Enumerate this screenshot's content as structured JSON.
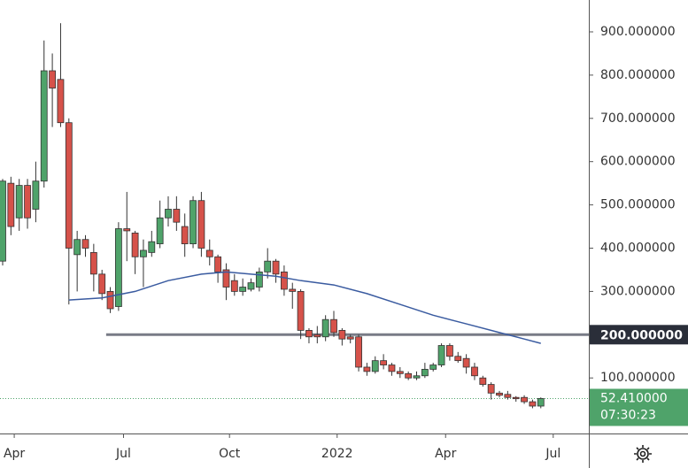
{
  "chart_data": {
    "type": "candlestick",
    "x": [
      0,
      1,
      2,
      3,
      4,
      5,
      6,
      7,
      8,
      9,
      10,
      11,
      12,
      13,
      14,
      15,
      16,
      17,
      18,
      19,
      20,
      21,
      22,
      23,
      24,
      25,
      26,
      27,
      28,
      29,
      30,
      31,
      32,
      33,
      34,
      35,
      36,
      37,
      38,
      39,
      40,
      41,
      42,
      43,
      44,
      45,
      46,
      47,
      48,
      49,
      50,
      51,
      52,
      53,
      54,
      55,
      56,
      57,
      58,
      59,
      60,
      61,
      62,
      63,
      64,
      65
    ],
    "open": [
      370,
      550,
      470,
      545,
      490,
      555,
      810,
      790,
      690,
      385,
      420,
      390,
      340,
      300,
      265,
      445,
      435,
      380,
      390,
      410,
      470,
      490,
      450,
      410,
      510,
      395,
      380,
      350,
      325,
      300,
      305,
      310,
      345,
      370,
      345,
      305,
      300,
      210,
      200,
      195,
      235,
      210,
      195,
      195,
      125,
      115,
      140,
      130,
      115,
      110,
      100,
      105,
      120,
      130,
      175,
      150,
      145,
      125,
      100,
      85,
      65,
      62,
      55,
      55,
      45,
      35
    ],
    "high": [
      560,
      565,
      560,
      560,
      600,
      880,
      850,
      920,
      700,
      440,
      430,
      410,
      350,
      310,
      460,
      530,
      440,
      420,
      440,
      510,
      520,
      520,
      480,
      520,
      530,
      420,
      385,
      365,
      340,
      330,
      330,
      355,
      400,
      375,
      360,
      320,
      305,
      215,
      220,
      245,
      255,
      215,
      200,
      200,
      135,
      150,
      155,
      135,
      125,
      115,
      115,
      135,
      135,
      180,
      180,
      160,
      155,
      135,
      105,
      90,
      70,
      70,
      58,
      60,
      50,
      55
    ],
    "low": [
      360,
      430,
      440,
      445,
      460,
      540,
      680,
      680,
      270,
      300,
      380,
      300,
      280,
      250,
      255,
      370,
      340,
      310,
      380,
      400,
      450,
      440,
      380,
      400,
      380,
      360,
      320,
      280,
      290,
      290,
      300,
      300,
      330,
      320,
      290,
      260,
      190,
      180,
      180,
      185,
      195,
      175,
      180,
      115,
      105,
      110,
      120,
      105,
      100,
      95,
      95,
      100,
      115,
      125,
      140,
      135,
      110,
      95,
      80,
      50,
      55,
      50,
      45,
      40,
      30,
      30
    ],
    "close": [
      555,
      450,
      545,
      470,
      555,
      810,
      770,
      690,
      400,
      420,
      400,
      340,
      295,
      260,
      445,
      440,
      380,
      395,
      415,
      470,
      490,
      460,
      410,
      510,
      400,
      380,
      345,
      310,
      300,
      310,
      320,
      345,
      370,
      340,
      305,
      300,
      210,
      195,
      195,
      235,
      205,
      190,
      190,
      125,
      115,
      140,
      130,
      115,
      110,
      100,
      105,
      120,
      130,
      175,
      150,
      140,
      125,
      105,
      85,
      65,
      60,
      55,
      52,
      45,
      35,
      52.41
    ],
    "up_color": "#4fa36a",
    "down_color": "#d6524a",
    "moving_average": {
      "color": "#3a5ba0",
      "x": [
        8,
        12,
        16,
        20,
        24,
        27,
        30,
        33,
        36,
        40,
        44,
        48,
        52,
        56,
        60,
        63,
        65
      ],
      "values": [
        280,
        285,
        300,
        325,
        340,
        345,
        340,
        335,
        325,
        315,
        295,
        270,
        245,
        225,
        205,
        190,
        180
      ]
    },
    "level": {
      "value": 200,
      "label": "200.000000",
      "x_start": 12.5,
      "color": "#787b86"
    },
    "last_price": {
      "value": 52.41,
      "label": "52.410000",
      "countdown": "07:30:23"
    },
    "xlim": [
      -0.32,
      70.8
    ],
    "ylim": [
      -28.4,
      973.6
    ],
    "xticks": [
      {
        "value": 1.4,
        "label": "Apr"
      },
      {
        "value": 14.6,
        "label": "Jul"
      },
      {
        "value": 27.4,
        "label": "Oct"
      },
      {
        "value": 40.4,
        "label": "2022"
      },
      {
        "value": 53.5,
        "label": "Apr"
      },
      {
        "value": 66.5,
        "label": "Jul"
      }
    ],
    "yticks": [
      {
        "value": 100,
        "label": "100.000000"
      },
      {
        "value": 200,
        "label": "200.000000"
      },
      {
        "value": 300,
        "label": "300.000000"
      },
      {
        "value": 400,
        "label": "400.000000"
      },
      {
        "value": 500,
        "label": "500.000000"
      },
      {
        "value": 600,
        "label": "600.000000"
      },
      {
        "value": 700,
        "label": "700.000000"
      },
      {
        "value": 800,
        "label": "800.000000"
      },
      {
        "value": 900,
        "label": "900.000000"
      }
    ]
  }
}
